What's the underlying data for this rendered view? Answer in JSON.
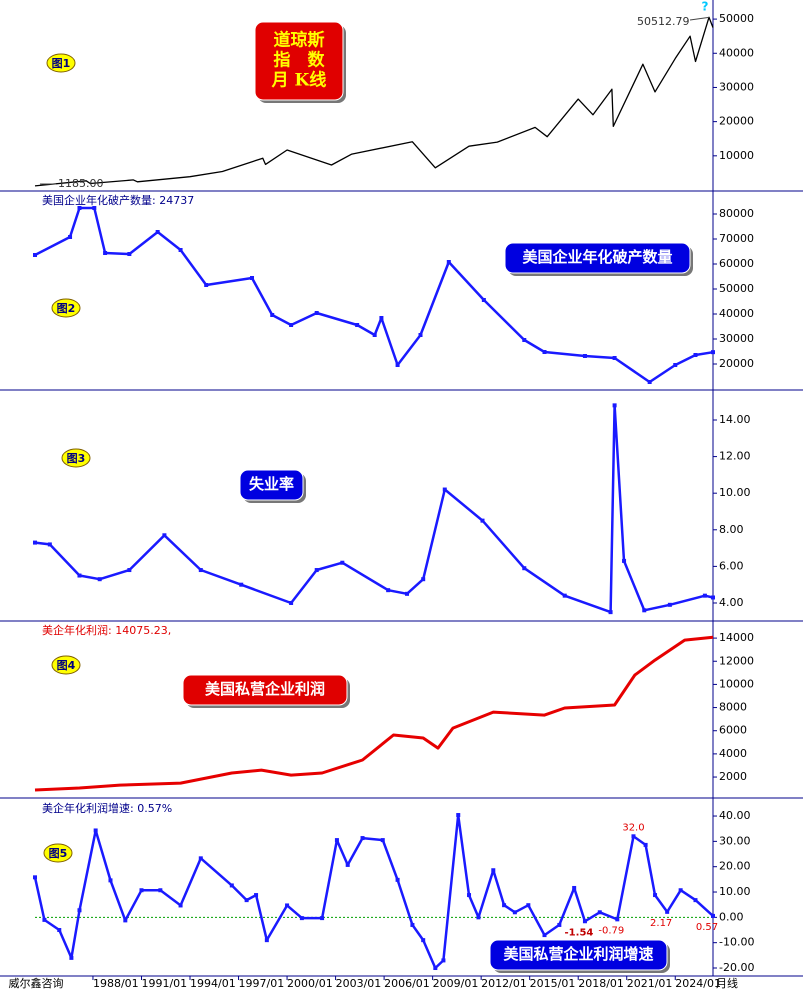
{
  "help": "?",
  "footer": {
    "brand": "威尔鑫咨询",
    "period": "月线"
  },
  "chart_data": [
    {
      "type": "line",
      "badge": "图1",
      "title": [
        "道琼斯",
        "指　数",
        "月 K线"
      ],
      "annotations": [
        "50512.79",
        "1185.00"
      ],
      "xlim": [
        "1984/06",
        "2026/05"
      ],
      "ylim": [
        0,
        55000
      ],
      "yticks": [
        10000,
        20000,
        30000,
        40000,
        50000
      ],
      "color": "#000000",
      "markers": false,
      "x": [
        "1984/06",
        "1987/08",
        "1987/11",
        "1990/07",
        "1990/10",
        "1994/01",
        "1996/01",
        "1998/07",
        "1998/09",
        "2000/01",
        "2002/10",
        "2004/01",
        "2007/10",
        "2009/03",
        "2011/04",
        "2013/01",
        "2015/05",
        "2016/02",
        "2018/01",
        "2018/12",
        "2020/02",
        "2020/03",
        "2022/01",
        "2022/10",
        "2024/01",
        "2024/12",
        "2025/04",
        "2026/02",
        "2026/05"
      ],
      "values": [
        1185,
        2700,
        1900,
        2950,
        2400,
        3900,
        5400,
        9300,
        7500,
        11700,
        7300,
        10500,
        14100,
        6500,
        12800,
        14000,
        18300,
        15600,
        26600,
        22000,
        29500,
        18600,
        36800,
        28700,
        38500,
        45000,
        37600,
        50512.79,
        47500
      ]
    },
    {
      "type": "line",
      "badge": "图2",
      "title": [
        "美国企业年化破产数量"
      ],
      "header": "美国企业年化破产数量: 24737",
      "xlim": [
        "1984/06",
        "2026/05"
      ],
      "ylim": [
        9600,
        88800
      ],
      "yticks": [
        20000,
        30000,
        40000,
        50000,
        60000,
        70000,
        80000
      ],
      "color": "#1a1aff",
      "markers": true,
      "x": [
        "1984/06",
        "1986/08",
        "1987/03",
        "1988/02",
        "1988/10",
        "1990/04",
        "1992/01",
        "1993/06",
        "1995/01",
        "1997/11",
        "1999/02",
        "2000/04",
        "2001/11",
        "2004/05",
        "2005/06",
        "2005/11",
        "2006/11",
        "2008/04",
        "2010/01",
        "2012/03",
        "2014/09",
        "2015/12",
        "2018/06",
        "2020/04",
        "2022/06",
        "2024/01",
        "2025/04",
        "2026/05"
      ],
      "values": [
        63600,
        70800,
        82400,
        82400,
        64400,
        64000,
        72800,
        65600,
        51600,
        54400,
        39600,
        35600,
        40400,
        35600,
        31600,
        38400,
        19600,
        31600,
        60800,
        45600,
        29600,
        24800,
        23200,
        22400,
        12800,
        19600,
        23600,
        24737
      ]
    },
    {
      "type": "line",
      "badge": "图3",
      "title": [
        "失业率"
      ],
      "xlim": [
        "1984/06",
        "2026/05"
      ],
      "ylim": [
        3.07,
        15.53
      ],
      "yticks": [
        {
          "value": 4,
          "label": "4.00"
        },
        {
          "value": 6,
          "label": "6.00"
        },
        {
          "value": 8,
          "label": "8.00"
        },
        {
          "value": 10,
          "label": "10.00"
        },
        {
          "value": 12,
          "label": "12.00"
        },
        {
          "value": 14,
          "label": "14.00"
        }
      ],
      "color": "#1a1aff",
      "markers": true,
      "x": [
        "1984/06",
        "1985/05",
        "1987/03",
        "1988/06",
        "1990/04",
        "1992/06",
        "1994/09",
        "1997/03",
        "2000/04",
        "2001/11",
        "2003/06",
        "2006/04",
        "2007/06",
        "2008/06",
        "2009/10",
        "2012/02",
        "2014/09",
        "2017/03",
        "2020/01",
        "2020/04",
        "2020/11",
        "2022/02",
        "2023/09",
        "2025/11",
        "2026/05"
      ],
      "values": [
        7.3,
        7.2,
        5.5,
        5.3,
        5.8,
        7.7,
        5.8,
        5.0,
        4.0,
        5.8,
        6.2,
        4.7,
        4.5,
        5.3,
        10.2,
        8.5,
        5.9,
        4.4,
        3.5,
        14.8,
        6.3,
        3.6,
        3.9,
        4.4,
        4.3
      ]
    },
    {
      "type": "line",
      "badge": "图4",
      "title": [
        "美国私营企业利润"
      ],
      "header": "美企年化利润: 14075.23,",
      "xlim": [
        "1984/06",
        "2026/05"
      ],
      "ylim": [
        190,
        15390
      ],
      "yticks": [
        2000,
        4000,
        6000,
        8000,
        10000,
        12000,
        14000
      ],
      "color": "#e60000",
      "markers": false,
      "x": [
        "1984/06",
        "1987/03",
        "1989/09",
        "1993/06",
        "1996/08",
        "1998/06",
        "2000/04",
        "2002/03",
        "2004/09",
        "2006/08",
        "2008/06",
        "2009/05",
        "2010/04",
        "2012/10",
        "2015/12",
        "2017/03",
        "2020/04",
        "2021/07",
        "2022/10",
        "2024/08",
        "2026/05"
      ],
      "values": [
        880,
        1050,
        1300,
        1480,
        2350,
        2600,
        2170,
        2350,
        3470,
        5630,
        5370,
        4500,
        6230,
        7610,
        7350,
        7960,
        8220,
        10800,
        12100,
        13830,
        14075.23
      ]
    },
    {
      "type": "line",
      "badge": "图5",
      "title": [
        "美国私营企业利润增速"
      ],
      "header": "美企年化利润增速: 0.57%",
      "xlim": [
        "1984/06",
        "2026/05"
      ],
      "ylim": [
        -22.76,
        46.33
      ],
      "yticks": [
        {
          "value": -20,
          "label": "-20.00"
        },
        {
          "value": -10,
          "label": "-10.00"
        },
        {
          "value": 0,
          "label": "0.00"
        },
        {
          "value": 10,
          "label": "10.00"
        },
        {
          "value": 20,
          "label": "20.00"
        },
        {
          "value": 30,
          "label": "30.00"
        },
        {
          "value": 40,
          "label": "40.00"
        }
      ],
      "reference_line": 0,
      "reference_color": "#00a000",
      "color": "#1a1aff",
      "markers": true,
      "x": [
        "1984/06",
        "1985/01",
        "1985/12",
        "1986/09",
        "1987/03",
        "1988/03",
        "1989/02",
        "1990/01",
        "1991/01",
        "1992/03",
        "1993/06",
        "1994/09",
        "1996/08",
        "1997/07",
        "1998/02",
        "1998/10",
        "2000/01",
        "2000/12",
        "2002/03",
        "2003/02",
        "2003/10",
        "2004/09",
        "2005/12",
        "2006/11",
        "2007/10",
        "2008/06",
        "2009/03",
        "2009/09",
        "2010/08",
        "2011/04",
        "2011/11",
        "2012/10",
        "2013/06",
        "2014/02",
        "2014/12",
        "2015/12",
        "2016/11",
        "2017/10",
        "2018/06",
        "2019/05",
        "2020/06",
        "2021/06",
        "2022/03",
        "2022/10",
        "2023/07",
        "2024/05",
        "2025/04",
        "2026/05"
      ],
      "values": [
        15.8,
        -1,
        -5,
        -16,
        2.8,
        34.3,
        14.6,
        -1.2,
        10.7,
        10.7,
        4.7,
        23.3,
        12.6,
        6.8,
        8.8,
        -9,
        4.7,
        -0.3,
        -0.3,
        30.5,
        20.7,
        31.3,
        30.5,
        14.8,
        -3,
        -9,
        -20,
        -17,
        40.4,
        8.8,
        0,
        18.6,
        4.8,
        2,
        4.8,
        -7,
        -3,
        11.6,
        -1.54,
        2,
        -0.79,
        32,
        28.6,
        8.8,
        2.17,
        10.7,
        6.8,
        0.57
      ],
      "value_labels": [
        null,
        null,
        null,
        null,
        null,
        null,
        null,
        null,
        null,
        null,
        null,
        null,
        null,
        null,
        null,
        null,
        null,
        null,
        null,
        null,
        null,
        null,
        null,
        null,
        null,
        null,
        null,
        null,
        null,
        null,
        null,
        null,
        null,
        null,
        null,
        null,
        null,
        null,
        "-1.54",
        null,
        "-0.79",
        "32.0",
        null,
        null,
        "2.17",
        null,
        null,
        "0.57"
      ],
      "xticks": [
        "1988/01",
        "1991/01",
        "1994/01",
        "1997/01",
        "2000/01",
        "2003/01",
        "2006/01",
        "2009/01",
        "2012/01",
        "2015/01",
        "2018/01",
        "2021/01",
        "2024/01"
      ]
    }
  ]
}
